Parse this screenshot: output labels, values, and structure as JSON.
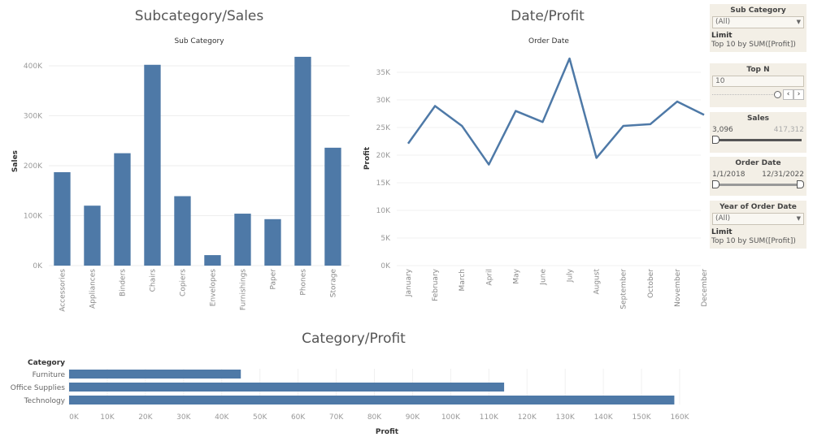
{
  "color_accent": "#4e79a7",
  "sales_chart": {
    "title": "Subcategory/Sales",
    "header": "Sub Category",
    "ylabel": "Sales"
  },
  "profit_chart": {
    "title": "Date/Profit",
    "header": "Order Date",
    "ylabel": "Profit"
  },
  "category_chart": {
    "title": "Category/Profit",
    "header": "Category",
    "xlabel": "Profit"
  },
  "chart_data": [
    {
      "type": "bar",
      "title": "Subcategory/Sales",
      "xlabel": "Sub Category",
      "ylabel": "Sales",
      "categories": [
        "Accessories",
        "Appliances",
        "Binders",
        "Chairs",
        "Copiers",
        "Envelopes",
        "Furnishings",
        "Paper",
        "Phones",
        "Storage"
      ],
      "values": [
        187000,
        120000,
        225000,
        402000,
        139000,
        21000,
        104000,
        93000,
        418000,
        236000
      ],
      "ylim": [
        0,
        420000
      ],
      "yticks": [
        "0K",
        "100K",
        "200K",
        "300K",
        "400K"
      ],
      "grid": true
    },
    {
      "type": "line",
      "title": "Date/Profit",
      "xlabel": "Order Date",
      "ylabel": "Profit",
      "categories": [
        "January",
        "February",
        "March",
        "April",
        "May",
        "June",
        "July",
        "August",
        "September",
        "October",
        "November",
        "December"
      ],
      "values": [
        22100,
        28900,
        25300,
        18300,
        28000,
        26000,
        37500,
        19500,
        25300,
        25600,
        29700,
        27300
      ],
      "ylim": [
        0,
        38000
      ],
      "yticks": [
        "0K",
        "5K",
        "10K",
        "15K",
        "20K",
        "25K",
        "30K",
        "35K"
      ],
      "grid": true
    },
    {
      "type": "bar",
      "orientation": "horizontal",
      "title": "Category/Profit",
      "ylabel": "Category",
      "xlabel": "Profit",
      "categories": [
        "Furniture",
        "Office Supplies",
        "Technology"
      ],
      "values": [
        45000,
        114000,
        158600
      ],
      "xlim": [
        0,
        160000
      ],
      "xticks": [
        "0K",
        "10K",
        "20K",
        "30K",
        "40K",
        "50K",
        "60K",
        "70K",
        "80K",
        "90K",
        "100K",
        "110K",
        "120K",
        "130K",
        "140K",
        "150K",
        "160K"
      ],
      "grid": true
    }
  ],
  "filters": {
    "sub_category": {
      "title": "Sub Category",
      "value": "(All)",
      "limit_label": "Limit",
      "limit_value": "Top 10 by SUM([Profit])"
    },
    "top_n": {
      "title": "Top N",
      "value": "10",
      "slider_level": 1.0
    },
    "sales": {
      "title": "Sales",
      "min": "3,096",
      "max": "417,312"
    },
    "order_date": {
      "title": "Order Date",
      "min": "1/1/2018",
      "max": "12/31/2022"
    },
    "year": {
      "title": "Year of Order Date",
      "value": "(All)",
      "limit_label": "Limit",
      "limit_value": "Top 10 by SUM([Profit])"
    }
  }
}
